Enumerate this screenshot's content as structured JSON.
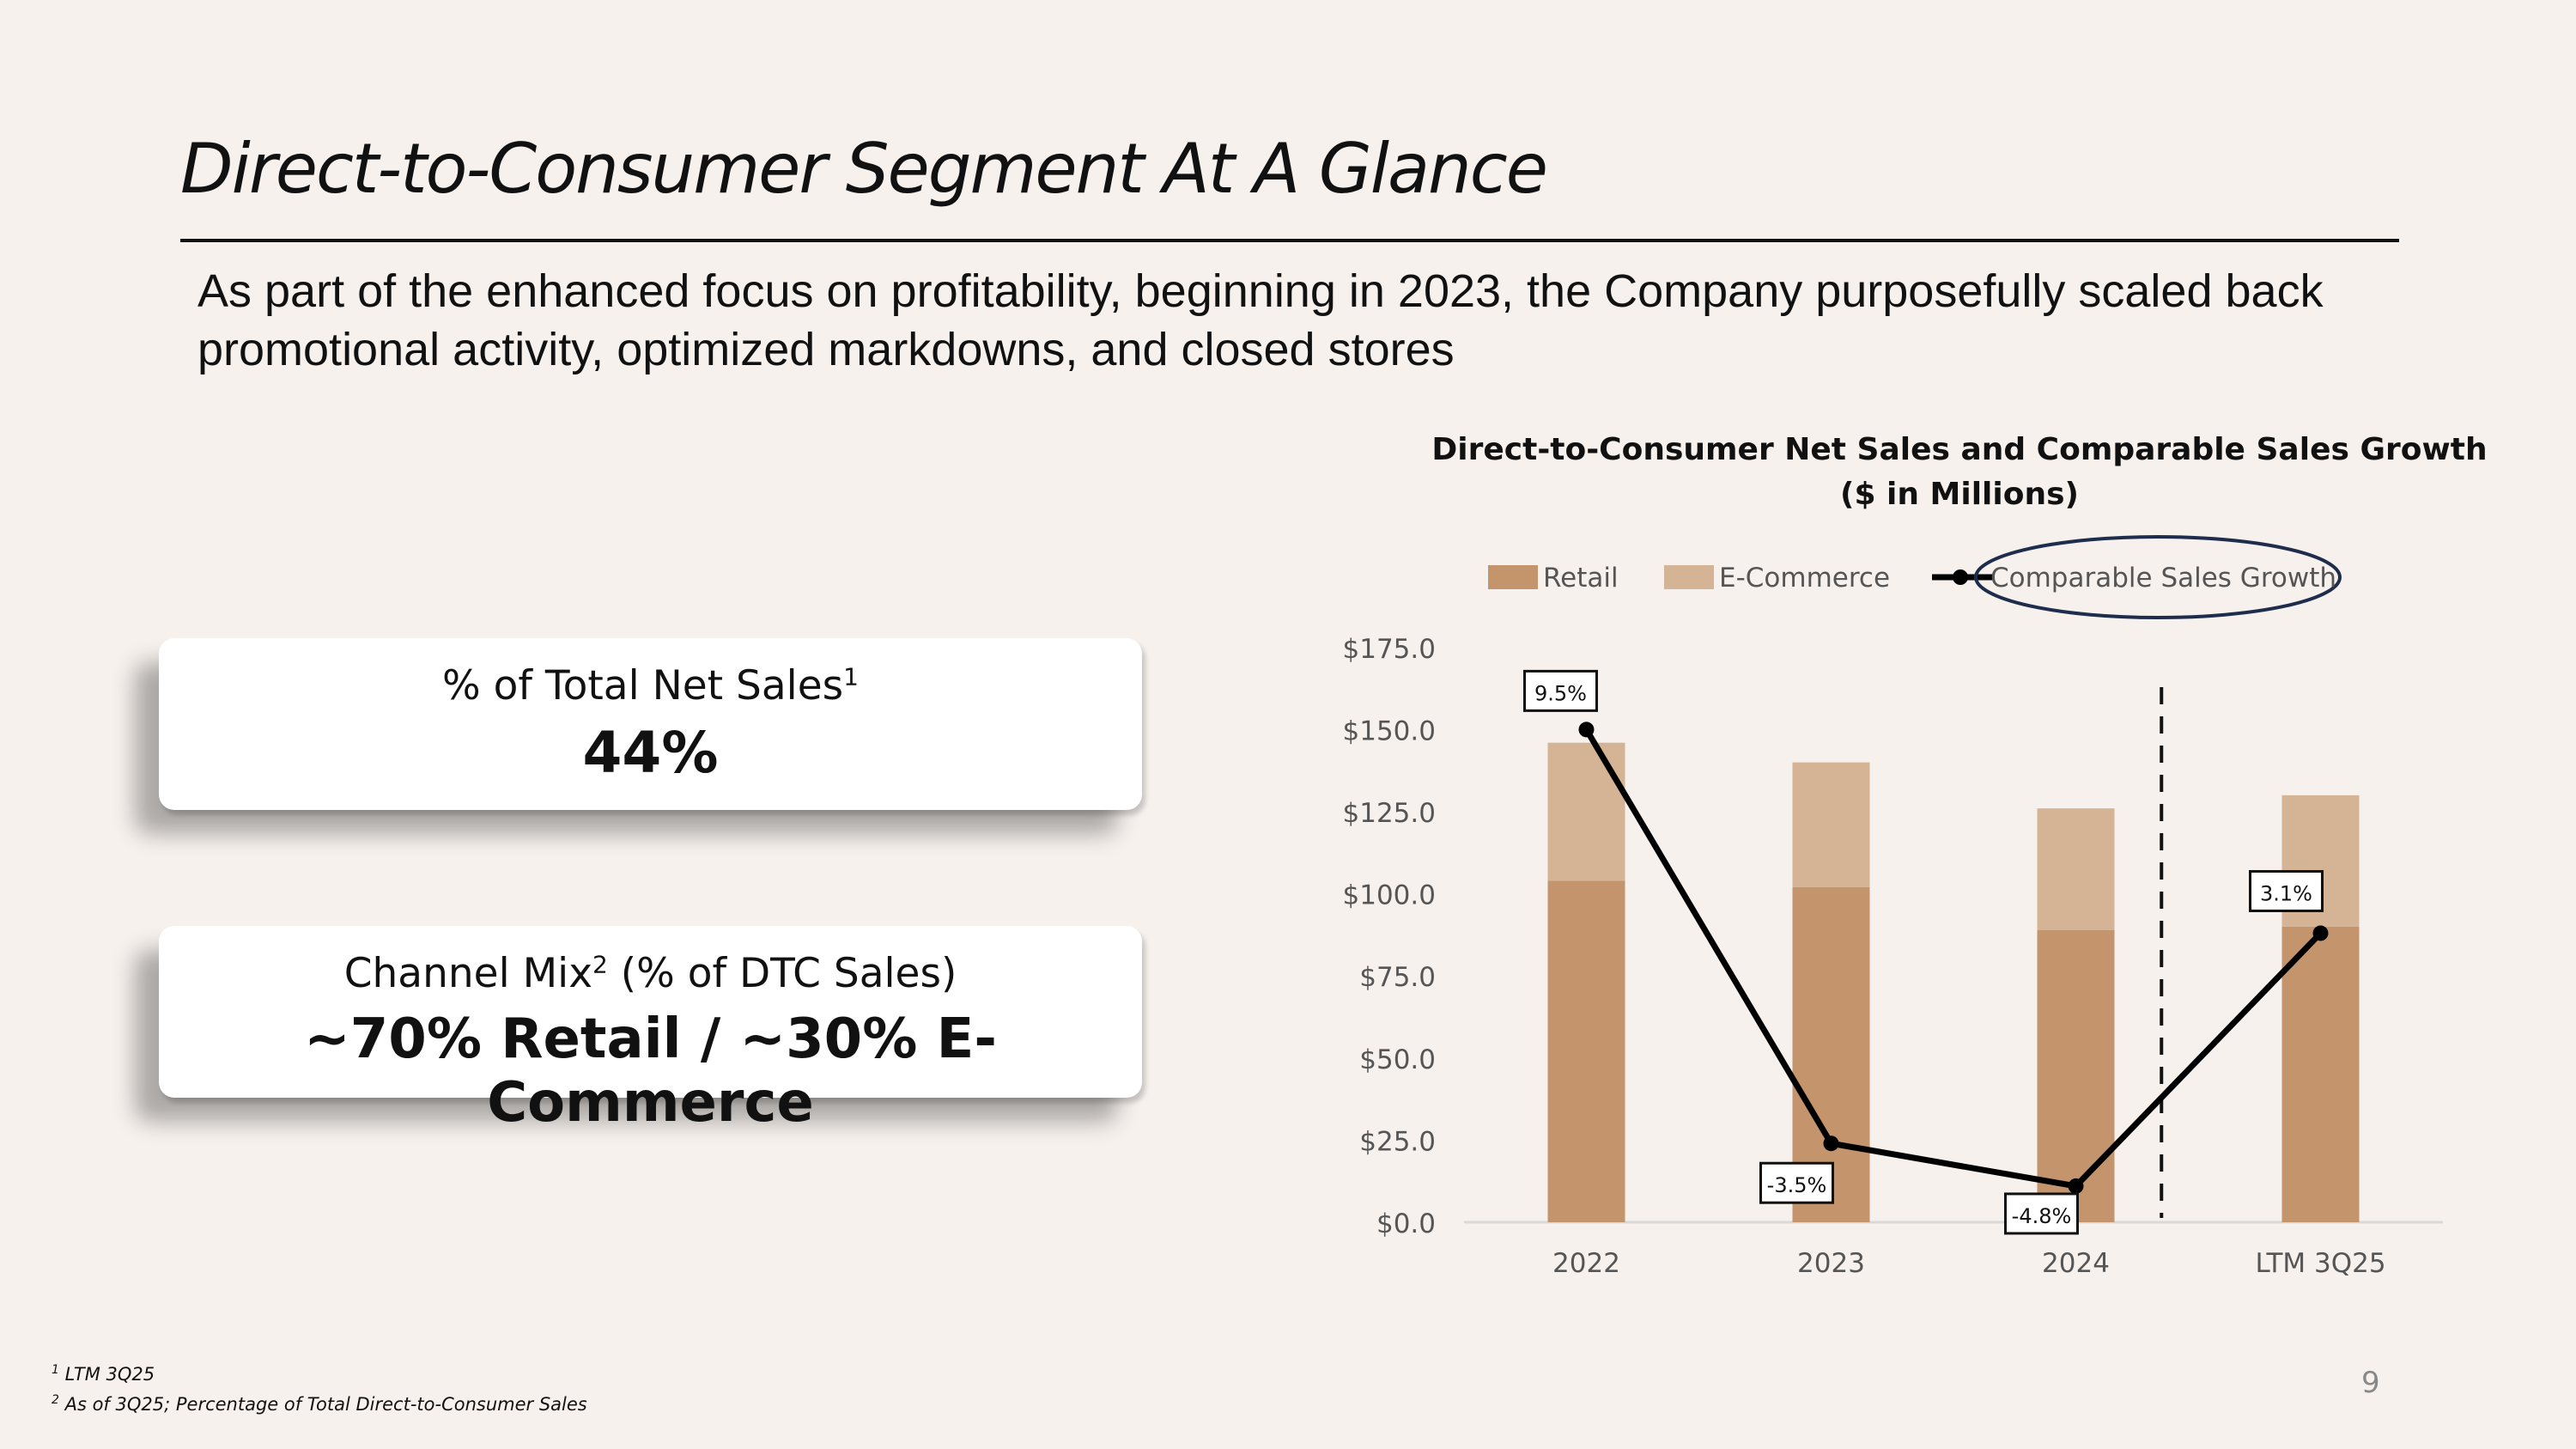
{
  "slide": {
    "title": "Direct-to-Consumer Segment At A Glance",
    "subtitle": "As part of the enhanced focus on profitability, beginning in 2023, the Company purposefully scaled back promotional activity, optimized markdowns, and closed stores",
    "page_number": "9"
  },
  "cards": [
    {
      "label": "% of Total Net Sales",
      "sup": "1",
      "value": "44%"
    },
    {
      "label_pre": "Channel Mix",
      "sup": "2",
      "label_post": " (% of DTC Sales)",
      "value": "~70% Retail / ~30% E-Commerce"
    }
  ],
  "footnotes": [
    {
      "sup": "1",
      "text": " LTM 3Q25"
    },
    {
      "sup": "2",
      "text": " As of 3Q25; Percentage of Total Direct-to-Consumer Sales"
    }
  ],
  "colors": {
    "retail": "#c4956c",
    "ecommerce": "#d4b494",
    "line": "#000000",
    "legend_ellipse": "#1f2d4d",
    "axis_text": "#555555"
  },
  "chart_data": {
    "type": "bar",
    "title_line1": "Direct-to-Consumer Net Sales and Comparable Sales Growth",
    "title_line2": "($ in Millions)",
    "categories": [
      "2022",
      "2023",
      "2024",
      "LTM 3Q25"
    ],
    "series": [
      {
        "name": "Retail",
        "values": [
          104,
          102,
          89,
          90
        ]
      },
      {
        "name": "E-Commerce",
        "values": [
          42,
          38,
          37,
          40
        ]
      }
    ],
    "line_series": {
      "name": "Comparable Sales Growth",
      "values": [
        9.5,
        -3.5,
        -4.8,
        3.1
      ],
      "labels": [
        "9.5%",
        "-3.5%",
        "-4.8%",
        "3.1%"
      ],
      "plot_positions": [
        150,
        24,
        11,
        88
      ]
    },
    "y_ticks": [
      "$0.0",
      "$25.0",
      "$50.0",
      "$75.0",
      "$100.0",
      "$125.0",
      "$150.0",
      "$175.0"
    ],
    "ylim": [
      0,
      175
    ],
    "divider_after_category": 3,
    "stacked": true
  }
}
